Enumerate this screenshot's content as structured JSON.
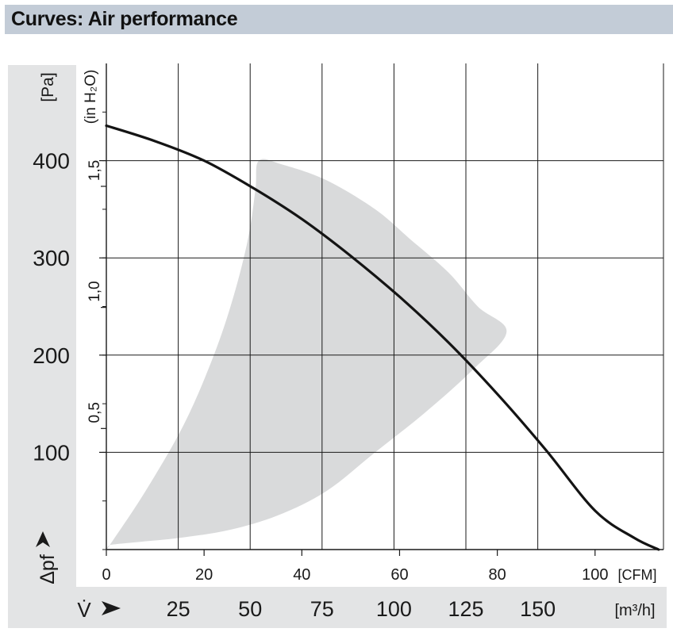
{
  "header": {
    "title": "Curves: Air performance"
  },
  "chart_data": {
    "type": "line",
    "title": "",
    "colors": {
      "curve": "#141414",
      "band": "#d9dadb",
      "grid": "#1a1a1a",
      "panel": "#e3e4e5"
    },
    "axes": {
      "x_cfm": {
        "unit_label": "[CFM]",
        "range": [
          0,
          114
        ],
        "ticks": [
          0,
          20,
          40,
          60,
          80,
          100
        ],
        "tick_labels": [
          "0",
          "20",
          "40",
          "60",
          "80",
          "100"
        ]
      },
      "x_m3h": {
        "symbol": "V̇",
        "unit_label": "[m³/h]",
        "range": [
          0,
          193.7
        ],
        "ticks": [
          25,
          50,
          75,
          100,
          125,
          150
        ],
        "tick_labels": [
          "25",
          "50",
          "75",
          "100",
          "125",
          "150"
        ]
      },
      "y_pa": {
        "symbol": "Δpf",
        "unit_label": "[Pa]",
        "range": [
          0,
          500
        ],
        "ticks": [
          100,
          200,
          300,
          400
        ],
        "tick_labels": [
          "100",
          "200",
          "300",
          "400"
        ]
      },
      "y_inh2o": {
        "unit_label": "(in H₂O)",
        "range": [
          0,
          2.0075
        ],
        "ticks": [
          0.5,
          1.0,
          1.5
        ],
        "tick_labels": [
          "0,5",
          "1,0",
          "1,5"
        ]
      }
    },
    "grid": true,
    "series": [
      {
        "unit_x": "CFM",
        "unit_y": "Pa",
        "x": [
          0,
          10,
          20,
          30,
          40,
          50,
          60,
          70,
          80,
          90,
          100,
          108,
          113
        ],
        "y": [
          436,
          420,
          400,
          372,
          340,
          302,
          260,
          213,
          160,
          102,
          40,
          12,
          0
        ]
      }
    ],
    "operating_range": {
      "unit_x": "CFM",
      "unit_y": "Pa",
      "x": [
        31.2,
        36,
        45,
        55,
        62,
        70,
        76,
        81.9,
        75,
        65,
        55,
        45,
        35,
        25,
        15,
        7,
        1,
        0.5,
        8,
        16,
        22,
        26,
        29,
        30.5
      ],
      "y": [
        400,
        396,
        380,
        350,
        320,
        285,
        250,
        224,
        185,
        140,
        100,
        60,
        35,
        20,
        12,
        8,
        5,
        3,
        60,
        130,
        200,
        260,
        320,
        370
      ]
    }
  }
}
